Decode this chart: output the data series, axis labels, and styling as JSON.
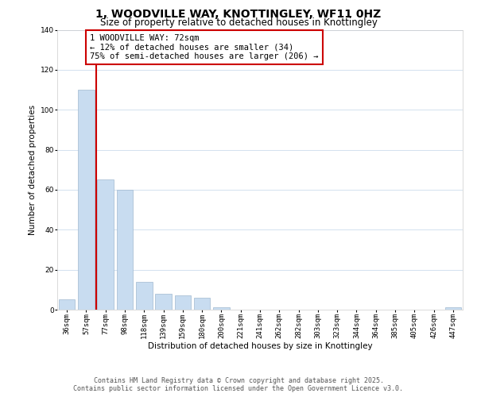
{
  "title": "1, WOODVILLE WAY, KNOTTINGLEY, WF11 0HZ",
  "subtitle": "Size of property relative to detached houses in Knottingley",
  "xlabel": "Distribution of detached houses by size in Knottingley",
  "ylabel": "Number of detached properties",
  "categories": [
    "36sqm",
    "57sqm",
    "77sqm",
    "98sqm",
    "118sqm",
    "139sqm",
    "159sqm",
    "180sqm",
    "200sqm",
    "221sqm",
    "241sqm",
    "262sqm",
    "282sqm",
    "303sqm",
    "323sqm",
    "344sqm",
    "364sqm",
    "385sqm",
    "405sqm",
    "426sqm",
    "447sqm"
  ],
  "values": [
    5,
    110,
    65,
    60,
    14,
    8,
    7,
    6,
    1,
    0,
    0,
    0,
    0,
    0,
    0,
    0,
    0,
    0,
    0,
    0,
    1
  ],
  "bar_color": "#c8dcf0",
  "bar_edge_color": "#a0b8d0",
  "vline_x_index": 2,
  "vline_color": "#cc0000",
  "annotation_title": "1 WOODVILLE WAY: 72sqm",
  "annotation_line1": "← 12% of detached houses are smaller (34)",
  "annotation_line2": "75% of semi-detached houses are larger (206) →",
  "annotation_box_color": "#ffffff",
  "annotation_box_edge_color": "#cc0000",
  "ylim": [
    0,
    140
  ],
  "yticks": [
    0,
    20,
    40,
    60,
    80,
    100,
    120,
    140
  ],
  "footer_line1": "Contains HM Land Registry data © Crown copyright and database right 2025.",
  "footer_line2": "Contains public sector information licensed under the Open Government Licence v3.0.",
  "background_color": "#ffffff",
  "grid_color": "#ccdcec",
  "title_fontsize": 10,
  "subtitle_fontsize": 8.5,
  "axis_label_fontsize": 7.5,
  "tick_fontsize": 6.5,
  "annotation_fontsize": 7.5,
  "footer_fontsize": 6
}
